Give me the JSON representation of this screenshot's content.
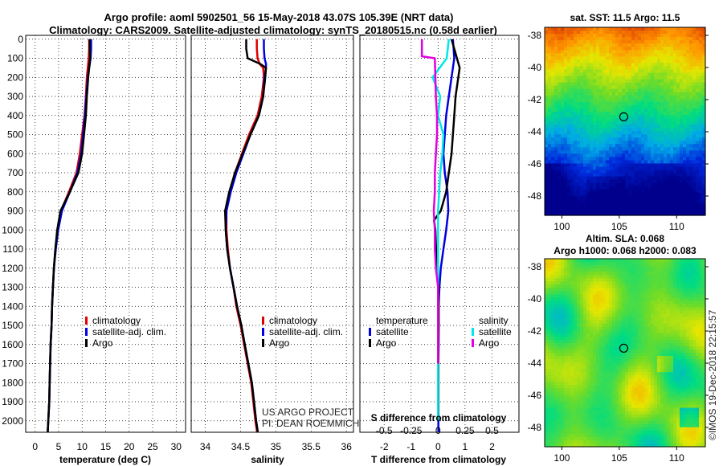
{
  "title_line1": "Argo profile: aoml 5902501_56 15-May-2018 43.07S 105.39E (NRT data)",
  "title_line2": "Climatology: CARS2009. Satellite-adjusted climatology: synTS_20180515.nc (0.58d earlier)",
  "colors": {
    "climatology": "#e00000",
    "satellite": "#0000e0",
    "argo": "#000000",
    "sal_satellite": "#00e8e8",
    "sal_argo": "#e000e0"
  },
  "depth_ticks": [
    "0",
    "100",
    "200",
    "300",
    "400",
    "500",
    "600",
    "700",
    "800",
    "900",
    "1000",
    "1100",
    "1200",
    "1300",
    "1400",
    "1500",
    "1600",
    "1700",
    "1800",
    "1900",
    "2000"
  ],
  "chart_data": [
    {
      "type": "line",
      "xlabel": "temperature (deg C)",
      "xlim": [
        -2,
        32
      ],
      "ylim": [
        2060,
        -20
      ],
      "x_ticks": [
        "0",
        "5",
        "10",
        "15",
        "20",
        "25",
        "30"
      ],
      "legend": [
        "climatology",
        "satellite-adj. clim.",
        "Argo"
      ],
      "series": [
        {
          "key": "climatology",
          "x": [
            11.5,
            11.5,
            11.4,
            11.2,
            11.0,
            10.8,
            10.5,
            10.0,
            9.5,
            8.8,
            7.2,
            5.5,
            4.8,
            4.3,
            4.0,
            3.8,
            3.6,
            3.5,
            3.3,
            3.2,
            3.1,
            3.0,
            2.9,
            2.8,
            2.7,
            2.7
          ],
          "y": [
            0,
            50,
            100,
            150,
            200,
            300,
            400,
            500,
            600,
            700,
            800,
            900,
            1000,
            1100,
            1200,
            1300,
            1400,
            1500,
            1600,
            1700,
            1800,
            1900,
            1950,
            2000,
            2050,
            2060
          ]
        },
        {
          "key": "satellite",
          "x": [
            11.9,
            11.9,
            11.8,
            11.5,
            11.2,
            10.9,
            10.6,
            10.2,
            9.8,
            9.0,
            7.4,
            5.7,
            4.9,
            4.4,
            4.0,
            3.8,
            3.6,
            3.5,
            3.3,
            3.2,
            3.1,
            3.0,
            2.9,
            2.8,
            2.7,
            2.7
          ],
          "y": [
            0,
            50,
            100,
            150,
            200,
            300,
            400,
            500,
            600,
            700,
            800,
            900,
            1000,
            1100,
            1200,
            1300,
            1400,
            1500,
            1600,
            1700,
            1800,
            1900,
            1950,
            2000,
            2050,
            2060
          ]
        },
        {
          "key": "argo",
          "x": [
            11.6,
            11.6,
            11.7,
            11.5,
            11.3,
            11.0,
            10.8,
            10.4,
            10.0,
            9.2,
            7.4,
            5.4,
            4.7,
            4.3,
            4.0,
            3.8,
            3.6,
            3.5,
            3.3,
            3.2,
            3.1,
            3.0,
            2.9,
            2.8,
            2.7,
            2.7
          ],
          "y": [
            0,
            50,
            100,
            150,
            200,
            300,
            400,
            500,
            600,
            700,
            800,
            900,
            1000,
            1100,
            1200,
            1300,
            1400,
            1500,
            1600,
            1700,
            1800,
            1900,
            1950,
            2000,
            2050,
            2060
          ]
        }
      ]
    },
    {
      "type": "line",
      "xlabel": "salinity",
      "xlim": [
        33.8,
        36.1
      ],
      "ylim": [
        2060,
        -20
      ],
      "x_ticks": [
        "34",
        "34.5",
        "35",
        "35.5",
        "36"
      ],
      "legend": [
        "climatology",
        "satellite-adj. clim.",
        "Argo"
      ],
      "credit": [
        "US ARGO PROJECT",
        "PI: DEAN ROEMMICH"
      ],
      "series": [
        {
          "key": "climatology",
          "x": [
            34.73,
            34.73,
            34.74,
            34.77,
            34.82,
            34.83,
            34.8,
            34.74,
            34.62,
            34.52,
            34.42,
            34.35,
            34.3,
            34.3,
            34.32,
            34.35,
            34.4,
            34.44,
            34.5,
            34.55,
            34.6,
            34.65,
            34.68,
            34.71,
            34.73,
            34.73
          ],
          "y": [
            0,
            50,
            100,
            130,
            150,
            200,
            300,
            400,
            500,
            600,
            700,
            800,
            900,
            1000,
            1100,
            1200,
            1300,
            1400,
            1500,
            1600,
            1700,
            1800,
            1900,
            2000,
            2050,
            2060
          ]
        },
        {
          "key": "satellite",
          "x": [
            34.83,
            34.83,
            34.84,
            34.86,
            34.86,
            34.84,
            34.82,
            34.76,
            34.64,
            34.54,
            34.44,
            34.36,
            34.3,
            34.29,
            34.31,
            34.35,
            34.4,
            34.45,
            34.51,
            34.56,
            34.61,
            34.66,
            34.69,
            34.72,
            34.74,
            34.74
          ],
          "y": [
            0,
            50,
            100,
            130,
            150,
            200,
            300,
            400,
            500,
            600,
            700,
            800,
            900,
            1000,
            1100,
            1200,
            1300,
            1400,
            1500,
            1600,
            1700,
            1800,
            1900,
            2000,
            2050,
            2060
          ]
        },
        {
          "key": "argo",
          "x": [
            34.58,
            34.58,
            34.6,
            34.78,
            34.86,
            34.85,
            34.82,
            34.76,
            34.64,
            34.53,
            34.42,
            34.34,
            34.28,
            34.29,
            34.31,
            34.35,
            34.4,
            34.45,
            34.51,
            34.56,
            34.61,
            34.66,
            34.69,
            34.72,
            34.74,
            34.74
          ],
          "y": [
            0,
            50,
            100,
            130,
            150,
            200,
            300,
            400,
            500,
            600,
            700,
            800,
            900,
            1000,
            1100,
            1200,
            1300,
            1400,
            1500,
            1600,
            1700,
            1800,
            1900,
            2000,
            2050,
            2060
          ]
        }
      ]
    },
    {
      "type": "line",
      "xlabel": "T difference from climatology",
      "xlabel2": "S difference from climatology",
      "xlim": [
        -2.9,
        3.0
      ],
      "ylim": [
        2060,
        -20
      ],
      "x_ticks": [
        "-2",
        "-1",
        "0",
        "1",
        "2"
      ],
      "s_ticks": [
        "-0.5",
        "-0.25",
        "0",
        "0.25",
        "0.5"
      ],
      "legend_temperature_title": "temperature",
      "legend_salinity_title": "salinity",
      "legend_temperature": [
        "satellite",
        "Argo"
      ],
      "legend_salinity": [
        "satellite",
        "Argo"
      ],
      "series": [
        {
          "key": "satellite",
          "group": "temperature",
          "x": [
            0.55,
            0.6,
            0.5,
            0.4,
            0.3,
            0.25,
            0.2,
            0.25,
            0.35,
            0.38,
            0.3,
            0.2,
            0.1,
            0.05,
            0.02,
            0.02,
            0.02,
            0.01,
            0.01,
            0.01,
            0.01,
            0.01
          ],
          "y": [
            0,
            100,
            200,
            300,
            400,
            500,
            600,
            700,
            800,
            900,
            1000,
            1100,
            1200,
            1300,
            1400,
            1500,
            1600,
            1700,
            1800,
            1900,
            2000,
            2060
          ]
        },
        {
          "key": "argo",
          "group": "temperature",
          "x": [
            0.5,
            0.7,
            0.8,
            0.65,
            0.6,
            0.55,
            0.5,
            0.4,
            0.3,
            0.1,
            -0.15,
            -0.1,
            -0.05,
            0.02,
            0.02,
            0.02,
            0.01,
            0.01,
            0.01,
            0.01
          ],
          "y": [
            0,
            100,
            150,
            300,
            400,
            500,
            600,
            700,
            800,
            900,
            950,
            1000,
            1200,
            1300,
            1400,
            1500,
            1600,
            1700,
            1800,
            2000
          ]
        },
        {
          "key": "sal_satellite",
          "group": "salinity",
          "x": [
            0.1,
            0.08,
            -0.05,
            0.02,
            0.0,
            0.05,
            0.04,
            0.02,
            0.01,
            0.0,
            0.0,
            0.0,
            0.0,
            0.0,
            0.0,
            0.0,
            0.0,
            0.0,
            0.0,
            0.0
          ],
          "y": [
            0,
            100,
            200,
            300,
            400,
            500,
            600,
            700,
            800,
            900,
            1000,
            1100,
            1200,
            1300,
            1400,
            1500,
            1600,
            1700,
            1800,
            2000
          ]
        },
        {
          "key": "sal_argo",
          "group": "salinity",
          "x": [
            -0.15,
            -0.15,
            -0.03,
            -0.02,
            -0.01,
            -0.01,
            -0.02,
            -0.03,
            -0.03,
            -0.04,
            -0.03,
            -0.03,
            -0.02,
            0.0,
            0.0,
            0.0,
            0.0,
            0.0
          ],
          "y": [
            0,
            90,
            100,
            300,
            400,
            500,
            600,
            700,
            800,
            900,
            1000,
            1100,
            1200,
            1300,
            1400,
            1500,
            1600,
            1700
          ]
        }
      ]
    },
    {
      "type": "heatmap",
      "title": "sat. SST: 11.5 Argo: 11.5",
      "x_ticks": [
        "100",
        "105",
        "110"
      ],
      "y_ticks": [
        "-38",
        "-40",
        "-42",
        "-44",
        "-46",
        "-48"
      ],
      "xlim": [
        98.5,
        112.5
      ],
      "ylim": [
        -49.2,
        -37.5
      ],
      "marker": {
        "lon": 105.39,
        "lat": -43.07
      }
    },
    {
      "type": "heatmap",
      "title": "Altim. SLA: 0.068",
      "subtitle": "Argo h1000: 0.068 h2000: 0.083",
      "x_ticks": [
        "100",
        "105",
        "110"
      ],
      "y_ticks": [
        "-38",
        "-40",
        "-42",
        "-44",
        "-46",
        "-48"
      ],
      "xlim": [
        98.5,
        112.5
      ],
      "ylim": [
        -49.2,
        -37.5
      ],
      "marker": {
        "lon": 105.39,
        "lat": -43.07
      }
    }
  ],
  "imos_stamp": "©IMOS 19-Dec-2018 22:15:57"
}
